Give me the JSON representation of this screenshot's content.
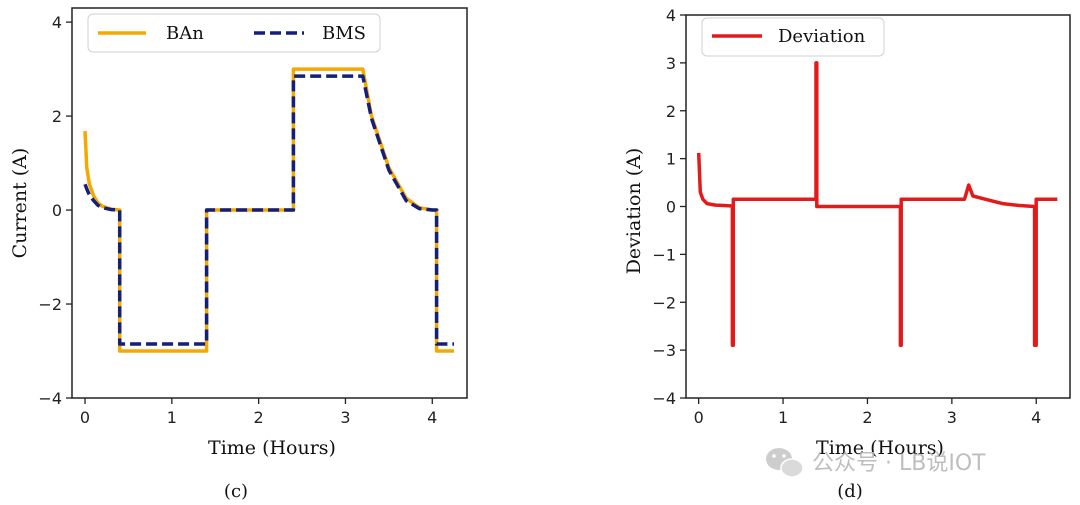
{
  "chart_data": [
    {
      "type": "line",
      "panel": "c",
      "caption": "(c)",
      "xlabel": "Time (Hours)",
      "ylabel": "Current (A)",
      "xlim": [
        -0.15,
        4.4
      ],
      "ylim": [
        -4,
        4.3
      ],
      "xticks": [
        0,
        1,
        2,
        3,
        4
      ],
      "xtick_labels": [
        "0",
        "1",
        "2",
        "3",
        "4"
      ],
      "yticks": [
        -4,
        -2,
        0,
        2,
        4
      ],
      "ytick_labels": [
        "−4",
        "−2",
        "0",
        "2",
        "4"
      ],
      "legend_position": "top",
      "series": [
        {
          "name": "BAn",
          "color": "#F5A800",
          "style": "solid",
          "x": [
            0,
            0.02,
            0.05,
            0.1,
            0.15,
            0.2,
            0.3,
            0.4,
            0.4,
            1.4,
            1.4,
            2.4,
            2.4,
            3.2,
            3.3,
            3.5,
            3.7,
            3.85,
            4.0,
            4.05,
            4.05,
            4.25
          ],
          "y": [
            1.68,
            0.9,
            0.55,
            0.3,
            0.15,
            0.08,
            0.02,
            0,
            -3.0,
            -3.0,
            0,
            0,
            3.0,
            3.0,
            2.0,
            0.9,
            0.25,
            0.05,
            0,
            0,
            -3.0,
            -3.0
          ]
        },
        {
          "name": "BMS",
          "color": "#131F78",
          "style": "dashed",
          "x": [
            0,
            0.02,
            0.05,
            0.1,
            0.15,
            0.2,
            0.3,
            0.4,
            0.4,
            1.4,
            1.4,
            2.4,
            2.4,
            3.2,
            3.3,
            3.5,
            3.7,
            3.85,
            4.0,
            4.05,
            4.05,
            4.25
          ],
          "y": [
            0.55,
            0.45,
            0.32,
            0.2,
            0.1,
            0.05,
            0.01,
            0,
            -2.85,
            -2.85,
            0,
            0,
            2.85,
            2.85,
            1.95,
            0.85,
            0.2,
            0.03,
            0,
            0,
            -2.85,
            -2.85
          ]
        }
      ]
    },
    {
      "type": "line",
      "panel": "d",
      "caption": "(d)",
      "xlabel": "Time (Hours)",
      "ylabel": "Deviation (A)",
      "xlim": [
        -0.15,
        4.4
      ],
      "ylim": [
        -4,
        4
      ],
      "xticks": [
        0,
        1,
        2,
        3,
        4
      ],
      "xtick_labels": [
        "0",
        "1",
        "2",
        "3",
        "4"
      ],
      "yticks": [
        -4,
        -3,
        -2,
        -1,
        0,
        1,
        2,
        3,
        4
      ],
      "ytick_labels": [
        "−4",
        "−3",
        "−2",
        "−1",
        "0",
        "1",
        "2",
        "3",
        "4"
      ],
      "legend_position": "top-left",
      "series": [
        {
          "name": "Deviation",
          "color": "#E31A1A",
          "style": "solid",
          "x": [
            0,
            0.02,
            0.05,
            0.1,
            0.2,
            0.3,
            0.4,
            0.4,
            0.41,
            0.41,
            0.45,
            1.39,
            1.39,
            1.4,
            1.4,
            2.39,
            2.39,
            2.4,
            2.4,
            3.15,
            3.2,
            3.25,
            3.4,
            3.6,
            3.8,
            3.98,
            3.98,
            4.0,
            4.0,
            4.25
          ],
          "y": [
            1.12,
            0.3,
            0.15,
            0.06,
            0.03,
            0.02,
            0.01,
            -2.9,
            -2.9,
            0.15,
            0.15,
            0.15,
            3.0,
            3.0,
            0,
            0,
            -2.9,
            -2.9,
            0.15,
            0.15,
            0.45,
            0.22,
            0.15,
            0.06,
            0.02,
            0,
            -2.9,
            -2.9,
            0.15,
            0.15
          ]
        }
      ]
    }
  ],
  "watermark": {
    "text": "公众号 · LB说IOT",
    "icon": "wechat-icon"
  }
}
